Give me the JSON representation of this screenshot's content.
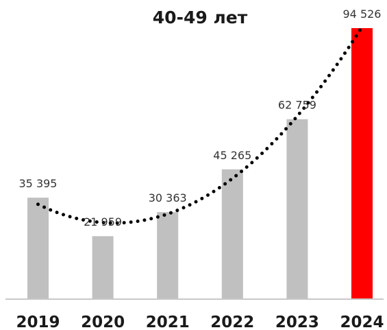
{
  "chart_data": {
    "type": "bar",
    "title": "40-49 лет",
    "categories": [
      "2019",
      "2020",
      "2021",
      "2022",
      "2023",
      "2024"
    ],
    "values": [
      35395,
      21959,
      30363,
      45265,
      62759,
      94526
    ],
    "value_labels": [
      "35 395",
      "21 959",
      "30 363",
      "45 265",
      "62 759",
      "94 526"
    ],
    "xlabel": "",
    "ylabel": "",
    "ylim": [
      0,
      94526
    ],
    "grid": false,
    "legend": "none",
    "trendline": "polynomial (dotted)",
    "colors": {
      "bar": "#c0c0c0",
      "highlight_bar": "#ff0000",
      "trendline": "#000000",
      "axis": "#c8c8c8"
    },
    "highlight_category": "2024"
  }
}
